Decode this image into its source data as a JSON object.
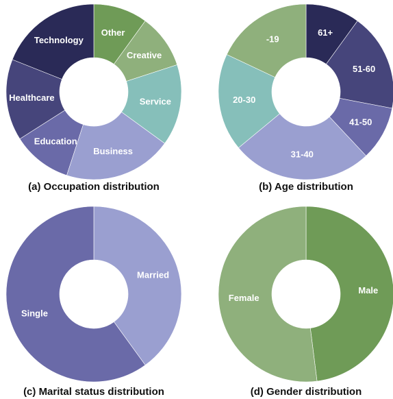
{
  "chart_data": [
    {
      "type": "pie",
      "donut": true,
      "caption": "(a) Occupation distribution",
      "colors": {
        "Other": "#6f9b57",
        "Creative": "#8fb07c",
        "Service": "#86bfba",
        "Business": "#9a9fd0",
        "Education": "#6a6aa8",
        "Healthcare": "#46457b",
        "Technology": "#2a2a57"
      },
      "slices": [
        {
          "label": "Other",
          "value": 10
        },
        {
          "label": "Creative",
          "value": 10
        },
        {
          "label": "Service",
          "value": 15
        },
        {
          "label": "Business",
          "value": 20
        },
        {
          "label": "Education",
          "value": 11
        },
        {
          "label": "Healthcare",
          "value": 15
        },
        {
          "label": "Technology",
          "value": 19
        }
      ]
    },
    {
      "type": "pie",
      "donut": true,
      "caption": "(b) Age distribution",
      "colors": {
        "61+": "#2a2a57",
        "51-60": "#46457b",
        "41-50": "#6a6aa8",
        "31-40": "#9a9fd0",
        "20-30": "#86bfba",
        "-19": "#8fb07c"
      },
      "slices": [
        {
          "label": "61+",
          "value": 10
        },
        {
          "label": "51-60",
          "value": 18
        },
        {
          "label": "41-50",
          "value": 10
        },
        {
          "label": "31-40",
          "value": 26
        },
        {
          "label": "20-30",
          "value": 18
        },
        {
          "label": "-19",
          "value": 18
        }
      ]
    },
    {
      "type": "pie",
      "donut": true,
      "caption": "(c) Marital status distribution",
      "colors": {
        "Married": "#9a9fd0",
        "Single": "#6a6aa8"
      },
      "slices": [
        {
          "label": "Married",
          "value": 40
        },
        {
          "label": "Single",
          "value": 60
        }
      ]
    },
    {
      "type": "pie",
      "donut": true,
      "caption": "(d) Gender distribution",
      "colors": {
        "Male": "#6f9b57",
        "Female": "#8fb07c"
      },
      "slices": [
        {
          "label": "Male",
          "value": 48
        },
        {
          "label": "Female",
          "value": 52
        }
      ]
    }
  ]
}
